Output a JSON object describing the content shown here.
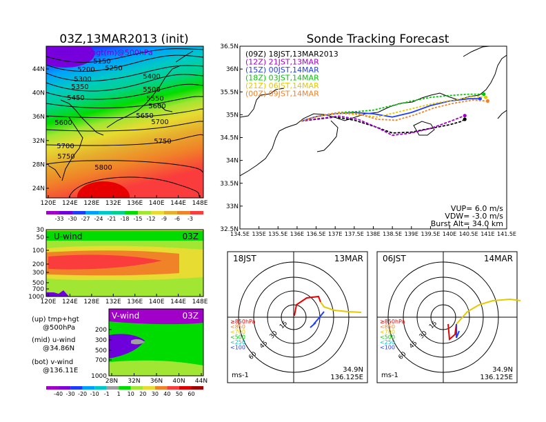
{
  "left_title": "03Z,13MAR2013 (init)",
  "right_title": "Sonde Tracking Forecast",
  "upper_map": {
    "label": "temp(C)+hgt(m)@500hPa",
    "xticks": [
      "120E",
      "124E",
      "128E",
      "132E",
      "136E",
      "140E",
      "144E",
      "148E"
    ],
    "yticks": [
      "24N",
      "28N",
      "32N",
      "36N",
      "40N",
      "44N"
    ],
    "colorbar": [
      "-33",
      "-30",
      "-27",
      "-24",
      "-21",
      "-18",
      "-15",
      "-12",
      "-9",
      "-6",
      "-3"
    ],
    "colorbar_colors": [
      "#a000c8",
      "#6e00dc",
      "#1e3cff",
      "#00a0ff",
      "#00c8c8",
      "#00d28c",
      "#00dc00",
      "#a0e632",
      "#e6dc32",
      "#e6af2d",
      "#f08228",
      "#fa3c3c"
    ],
    "contour_labels": [
      "5150",
      "5200",
      "5250",
      "5300",
      "5350",
      "5400",
      "5450",
      "5500",
      "5550",
      "5600",
      "5600",
      "5650",
      "5700",
      "5700",
      "5750",
      "5750",
      "5800"
    ]
  },
  "u_panel": {
    "label": "U-wind",
    "time": "03Z",
    "yticks": [
      "30",
      "50",
      "100",
      "200",
      "300",
      "500",
      "700",
      "1000"
    ],
    "xticks": [
      "120E",
      "124E",
      "128E",
      "132E",
      "136E",
      "140E",
      "144E",
      "148E"
    ]
  },
  "v_panel": {
    "label": "V-wind",
    "time": "03Z",
    "yticks": [
      "200",
      "300",
      "500",
      "700",
      "1000"
    ],
    "xticks": [
      "28N",
      "32N",
      "36N",
      "40N",
      "44N"
    ],
    "colorbar": [
      "-40",
      "-30",
      "-20",
      "-10",
      "-1",
      "1",
      "10",
      "20",
      "30",
      "40",
      "50",
      "60"
    ],
    "colorbar_colors": [
      "#a000c8",
      "#8200dc",
      "#1e3cff",
      "#00a0ff",
      "#00c8c8",
      "#a0a0a0",
      "#00dc00",
      "#a0e632",
      "#e6dc32",
      "#f08228",
      "#fa3c3c",
      "#dc0000",
      "#a00000"
    ]
  },
  "legend_notes": [
    {
      "line1": "(up) tmp+hgt",
      "line2": "@500hPa"
    },
    {
      "line1": "(mid) u-wind",
      "line2": "@34.86N"
    },
    {
      "line1": "(bot) v-wind",
      "line2": "@136.11E"
    }
  ],
  "chart_data": {
    "type": "line",
    "title": "Sonde Tracking Forecast",
    "xlim": [
      134.5,
      141.5
    ],
    "ylim": [
      32.5,
      36.5
    ],
    "xticks": [
      "134.5E",
      "135E",
      "135.5E",
      "136E",
      "136.5E",
      "137E",
      "137.5E",
      "138E",
      "138.5E",
      "139E",
      "139.5E",
      "140E",
      "140.5E",
      "141E",
      "141.5E"
    ],
    "yticks": [
      "32.5N",
      "33N",
      "33.5N",
      "34N",
      "34.5N",
      "35N",
      "35.5N",
      "36N",
      "36.5N"
    ],
    "series": [
      {
        "name": "(09Z)  18JST,13MAR2013",
        "color": "#000000",
        "x": [
          136.1,
          136.5,
          137.0,
          137.5,
          138.0,
          138.5,
          139.0,
          139.5,
          140.0,
          140.3,
          140.4
        ],
        "y": [
          34.86,
          34.9,
          34.95,
          34.88,
          34.75,
          34.6,
          34.62,
          34.7,
          34.78,
          34.85,
          34.9
        ]
      },
      {
        "name": "(12Z)  21JST,13MAR",
        "color": "#a000c8",
        "x": [
          136.1,
          136.6,
          137.1,
          137.6,
          138.1,
          138.5,
          139.0,
          139.5,
          140.0,
          140.4
        ],
        "y": [
          34.86,
          34.92,
          34.97,
          34.9,
          34.72,
          34.55,
          34.6,
          34.7,
          34.85,
          34.98
        ]
      },
      {
        "name": "(15Z)  00JST,14MAR",
        "color": "#1e3cff",
        "x": [
          136.1,
          136.5,
          137.0,
          137.5,
          138.0,
          138.5,
          139.0,
          139.5,
          140.0,
          140.5,
          140.8
        ],
        "y": [
          34.86,
          34.96,
          35.02,
          35.05,
          35.02,
          34.95,
          35.05,
          35.2,
          35.3,
          35.35,
          35.35
        ]
      },
      {
        "name": "(18Z)  03JST,14MAR",
        "color": "#00c800",
        "x": [
          136.1,
          136.6,
          137.1,
          137.6,
          138.0,
          138.5,
          139.0,
          139.5,
          140.0,
          140.5,
          140.9
        ],
        "y": [
          34.86,
          34.98,
          35.05,
          35.07,
          35.1,
          35.2,
          35.3,
          35.38,
          35.42,
          35.45,
          35.45
        ]
      },
      {
        "name": "(21Z)  06JST,14MAR",
        "color": "#e6c800",
        "x": [
          136.1,
          136.6,
          137.1,
          137.6,
          138.1,
          138.6,
          139.1,
          139.6,
          140.1,
          140.6,
          140.95
        ],
        "y": [
          34.86,
          34.97,
          35.03,
          35.0,
          34.95,
          35.05,
          35.15,
          35.25,
          35.32,
          35.4,
          35.38
        ]
      },
      {
        "name": "(00Z)  09JST,14MAR",
        "color": "#f08228",
        "x": [
          136.1,
          136.6,
          137.1,
          137.6,
          138.1,
          138.6,
          139.1,
          139.6,
          140.1,
          140.6,
          141.0
        ],
        "y": [
          34.86,
          34.98,
          35.05,
          35.02,
          34.9,
          34.88,
          35.0,
          35.15,
          35.25,
          35.32,
          35.3
        ]
      }
    ],
    "info": [
      "VUP=  6.0  m/s",
      "VDW= -3.0  m/s",
      "Burst Alt=  34.0  km"
    ]
  },
  "hodographs": [
    {
      "time": "18JST",
      "date": "13MAR",
      "lat": "34.9N",
      "lon": "136.125E",
      "unit": "ms-1",
      "legend": [
        {
          "t": "≥850hPa",
          "c": "#e60000"
        },
        {
          "t": "<850",
          "c": "#f08228"
        },
        {
          "t": "<700",
          "c": "#e6c800"
        },
        {
          "t": "<500",
          "c": "#00c800"
        },
        {
          "t": "<250",
          "c": "#00c8c8"
        },
        {
          "t": "<100",
          "c": "#1e3cff"
        }
      ],
      "rings": [
        "15",
        "30",
        "45",
        "60"
      ]
    },
    {
      "time": "06JST",
      "date": "14MAR",
      "lat": "34.9N",
      "lon": "136.125E",
      "unit": "ms-1",
      "legend": [
        {
          "t": "≥850hPa",
          "c": "#e60000"
        },
        {
          "t": "<850",
          "c": "#f08228"
        },
        {
          "t": "<700",
          "c": "#e6c800"
        },
        {
          "t": "<500",
          "c": "#00c800"
        },
        {
          "t": "<250",
          "c": "#00c8c8"
        },
        {
          "t": "<100",
          "c": "#1e3cff"
        }
      ],
      "rings": [
        "15",
        "30",
        "45",
        "60"
      ]
    }
  ]
}
